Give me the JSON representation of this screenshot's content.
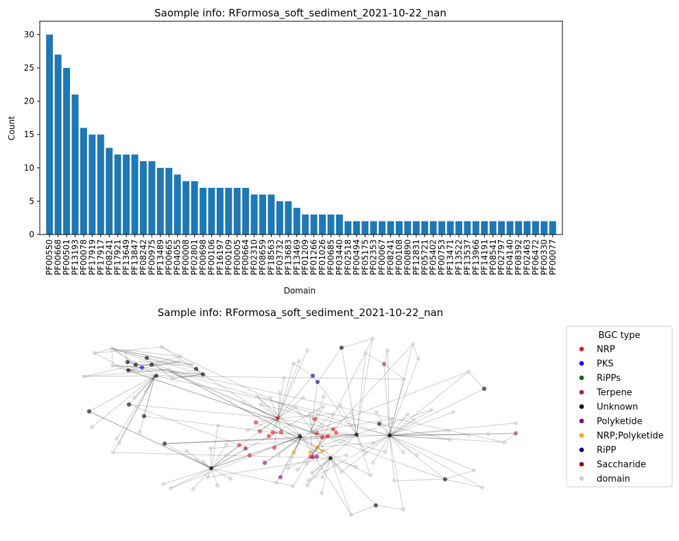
{
  "chart_data": [
    {
      "type": "bar",
      "title": "Saomple info: RFormosa_soft_sediment_2021-10-22_nan",
      "xlabel": "Domain",
      "ylabel": "Count",
      "ylim": [
        0,
        32
      ],
      "yticks": [
        "0",
        "5",
        "10",
        "15",
        "20",
        "25",
        "30"
      ],
      "color": "#1f77b4",
      "categories": [
        "PF00550",
        "PF00668",
        "PF00501",
        "PF13193",
        "PF00078",
        "PF17919",
        "PF17917",
        "PF08241",
        "PF17921",
        "PF13649",
        "PF13847",
        "PF08242",
        "PF00975",
        "PF13489",
        "PF00665",
        "PF04055",
        "PF00008",
        "PF02801",
        "PF00698",
        "PF00106",
        "PF16197",
        "PF00109",
        "PF00005",
        "PF00664",
        "PF02310",
        "PF08659",
        "PF18563",
        "PF03732",
        "PF13683",
        "PF13469",
        "PF01209",
        "PF01266",
        "PF01026",
        "PF00685",
        "PF03440",
        "PF02518",
        "PF00494",
        "PF05175",
        "PF02353",
        "PF00067",
        "PF08241",
        "PF00108",
        "PF00890",
        "PF12831",
        "PF05721",
        "PF05402",
        "PF00753",
        "PF13471",
        "PF13522",
        "PF13537",
        "PF13966",
        "PF14191",
        "PF08541",
        "PF02797",
        "PF04140",
        "PF08392",
        "PF02463",
        "PF06472",
        "PF00330",
        "PF00077"
      ],
      "values": [
        30,
        27,
        25,
        21,
        16,
        15,
        15,
        13,
        12,
        12,
        12,
        11,
        11,
        10,
        10,
        9,
        8,
        8,
        7,
        7,
        7,
        7,
        7,
        7,
        6,
        6,
        6,
        5,
        5,
        4,
        3,
        3,
        3,
        3,
        3,
        2,
        2,
        2,
        2,
        2,
        2,
        2,
        2,
        2,
        2,
        2,
        2,
        2,
        2,
        2,
        2,
        2,
        2,
        2,
        2,
        2,
        2,
        2,
        2,
        2
      ]
    },
    {
      "type": "network",
      "title": "Sample info: RFormosa_soft_sediment_2021-10-22_nan",
      "legend": {
        "title": "BGC type",
        "placement": "outside-right",
        "entries": [
          {
            "label": "NRP",
            "color": "#e41a1c"
          },
          {
            "label": "PKS",
            "color": "#0000ff"
          },
          {
            "label": "RiPPs",
            "color": "#006400"
          },
          {
            "label": "Terpene",
            "color": "#a52a2a"
          },
          {
            "label": "Unknown",
            "color": "#000000"
          },
          {
            "label": "Polyketide",
            "color": "#800080"
          },
          {
            "label": "NRP;Polyketide",
            "color": "#ffa500"
          },
          {
            "label": "RiPP",
            "color": "#000080"
          },
          {
            "label": "Saccharide",
            "color": "#8b0000"
          },
          {
            "label": "domain",
            "color": "#cccccc"
          }
        ]
      }
    }
  ]
}
